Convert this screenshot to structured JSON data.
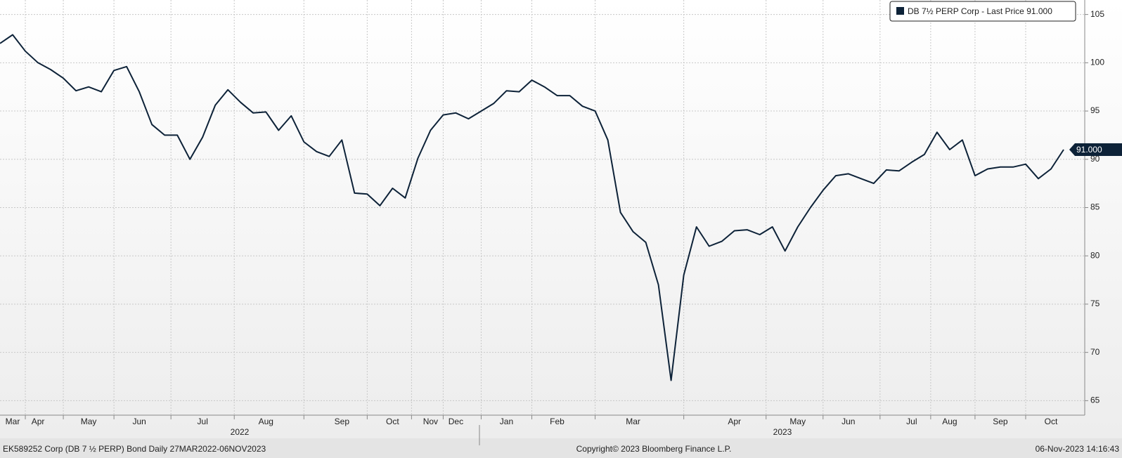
{
  "chart_data": {
    "type": "line",
    "series": [
      {
        "name": "DB 7½ PERP Corp - Last Price",
        "color": "#0d2238",
        "values": [
          102.0,
          102.9,
          101.2,
          100.0,
          99.3,
          98.4,
          97.1,
          97.5,
          97.0,
          99.2,
          99.6,
          97.0,
          93.6,
          92.5,
          92.5,
          90.0,
          92.3,
          95.6,
          97.2,
          95.9,
          94.8,
          94.9,
          93.0,
          94.5,
          91.8,
          90.8,
          90.3,
          92.0,
          86.5,
          86.4,
          85.2,
          87.0,
          86.0,
          90.1,
          93.0,
          94.6,
          94.8,
          94.2,
          95.0,
          95.8,
          97.1,
          97.0,
          98.2,
          97.5,
          96.6,
          96.6,
          95.5,
          95.0,
          92.0,
          84.5,
          82.5,
          81.4,
          77.0,
          67.1,
          78.0,
          83.0,
          81.0,
          81.5,
          82.6,
          82.7,
          82.2,
          83.0,
          80.5,
          83.0,
          85.0,
          86.8,
          88.3,
          88.5,
          88.0,
          87.5,
          88.9,
          88.8,
          89.7,
          90.5,
          92.8,
          91.0,
          92.0,
          88.3,
          89.0,
          89.2,
          89.2,
          89.5,
          88.0,
          89.0,
          91.0
        ]
      }
    ],
    "last_value_label": "91.000",
    "categories": [
      null,
      "Mar",
      null,
      "Apr",
      null,
      null,
      null,
      "May",
      null,
      null,
      null,
      "Jun",
      null,
      null,
      null,
      null,
      "Jul",
      null,
      null,
      null,
      null,
      "Aug",
      null,
      null,
      null,
      null,
      null,
      "Sep",
      null,
      null,
      null,
      "Oct",
      null,
      null,
      "Nov",
      null,
      "Dec",
      null,
      null,
      null,
      "Jan",
      null,
      null,
      null,
      "Feb",
      null,
      null,
      null,
      null,
      null,
      "Mar",
      null,
      null,
      null,
      null,
      null,
      null,
      null,
      "Apr",
      null,
      null,
      null,
      null,
      "May",
      null,
      null,
      null,
      "Jun",
      null,
      null,
      null,
      null,
      "Jul",
      null,
      null,
      "Aug",
      null,
      null,
      null,
      "Sep",
      null,
      null,
      null,
      "Oct",
      null
    ],
    "year_labels": [
      "2022",
      "2023"
    ],
    "ylim": [
      63.5,
      106.5
    ],
    "yticks": [
      65,
      70,
      75,
      80,
      85,
      90,
      95,
      100,
      105
    ],
    "grid": true,
    "footer": {
      "left": "EK589252 Corp (DB 7 ½ PERP) Bond  Daily 27MAR2022-06NOV2023",
      "center": "Copyright© 2023 Bloomberg Finance L.P.",
      "right": "06-Nov-2023 14:16:43"
    }
  }
}
